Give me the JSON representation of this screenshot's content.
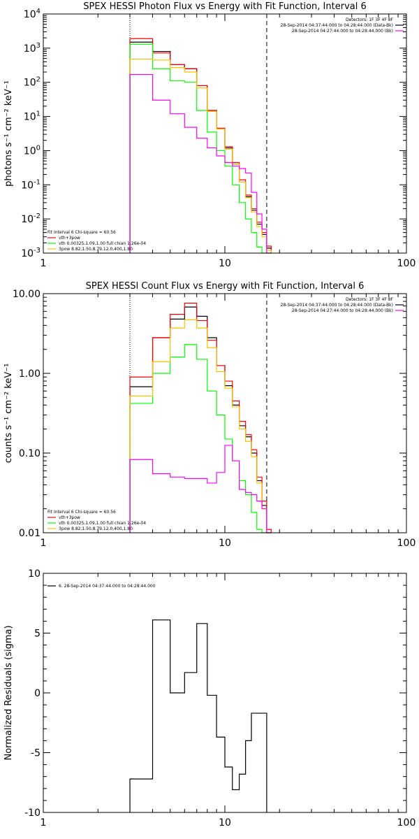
{
  "chart_data": [
    {
      "type": "line",
      "title": "SPEX HESSI Photon Flux vs Energy with Fit Function, Interval 6",
      "ylabel": "photons s⁻¹ cm⁻² keV⁻¹",
      "xscale": "log",
      "yscale": "log",
      "xlim": [
        1,
        100
      ],
      "ylim": [
        0.001,
        10000
      ],
      "xticks": [
        {
          "value": 1,
          "label": "1"
        },
        {
          "value": 10,
          "label": "10"
        },
        {
          "value": 100,
          "label": "100"
        }
      ],
      "yticks": [
        {
          "value": 0.001,
          "base": "10",
          "exp": "-3"
        },
        {
          "value": 0.01,
          "base": "10",
          "exp": "-2"
        },
        {
          "value": 0.1,
          "base": "10",
          "exp": "-1"
        },
        {
          "value": 1,
          "base": "10",
          "exp": "0"
        },
        {
          "value": 10,
          "base": "10",
          "exp": "1"
        },
        {
          "value": 100,
          "base": "10",
          "exp": "2"
        },
        {
          "value": 1000,
          "base": "10",
          "exp": "3"
        },
        {
          "value": 10000,
          "base": "10",
          "exp": "4"
        }
      ],
      "vlines": [
        {
          "x": 3.0,
          "style": "dotted"
        },
        {
          "x": 17.0,
          "style": "dashed"
        }
      ],
      "bin_edges": [
        3.0,
        4.0,
        5.0,
        6.0,
        7.0,
        8.0,
        9.0,
        10.0,
        11.0,
        12.0,
        13.0,
        14.0,
        15.0,
        16.0,
        17.0,
        18.0
      ],
      "series": [
        {
          "color": "#000000",
          "values": [
            1500,
            800,
            330,
            250,
            80,
            15,
            4.5,
            1.2,
            0.4,
            0.12,
            0.045,
            0.018,
            0.007,
            0.0035,
            0.0014
          ]
        },
        {
          "color": "#ff0000",
          "values": [
            1900,
            720,
            330,
            250,
            80,
            15,
            4.5,
            1.3,
            0.45,
            0.14,
            0.05,
            0.02,
            0.008,
            0.004,
            0.0016
          ]
        },
        {
          "color": "#00ff00",
          "values": [
            1300,
            250,
            110,
            100,
            15,
            3.5,
            1.0,
            0.35,
            0.1,
            0.03,
            0.01,
            0.004,
            0.0015,
            0.001,
            0.001
          ]
        },
        {
          "color": "#ffc000",
          "values": [
            480,
            450,
            270,
            200,
            68,
            14,
            4.3,
            1.1,
            0.4,
            0.12,
            0.042,
            0.016,
            0.006,
            0.003,
            0.0012
          ]
        },
        {
          "color": "#ff00ff",
          "values": [
            170,
            30,
            12,
            4.8,
            2.3,
            1.2,
            0.7,
            0.45,
            0.35,
            0.3,
            0.22,
            0.06,
            0.014,
            0.005,
            0.001
          ]
        }
      ],
      "legend_left": [
        {
          "text": "Fit Interval  6    Chi-square = 60.56",
          "color": "#000000",
          "line": false
        },
        {
          "text": "vth+3pow",
          "color": "#ff0000",
          "line": true
        },
        {
          "text": "vth 0.00325,1.09,1.00  full chian 1.26e-04",
          "color": "#00ff00",
          "line": true
        },
        {
          "text": "3pow 8.82,1.50,8.79,12.0,400,1.80",
          "color": "#ffc000",
          "line": true
        }
      ],
      "legend_right": [
        {
          "text": "Detectors: 1F 3F 4F 8F",
          "color": "#000000",
          "line": false
        },
        {
          "text": "28-Sep-2014 04:37:44.000 to 04:28:44.000 (Data-Bk)",
          "color": "#000000",
          "line": true
        },
        {
          "text": "28-Sep-2014 04:27:44.000 to 04:28:44.000 (Bk)",
          "color": "#ff00ff",
          "line": true
        }
      ]
    },
    {
      "type": "line",
      "title": "SPEX HESSI Count Flux vs Energy with Fit Function, Interval 6",
      "ylabel": "counts s⁻¹ cm⁻² keV⁻¹",
      "xscale": "log",
      "yscale": "log",
      "xlim": [
        1,
        100
      ],
      "ylim": [
        0.01,
        10
      ],
      "xticks": [
        {
          "value": 1,
          "label": "1"
        },
        {
          "value": 10,
          "label": "10"
        },
        {
          "value": 100,
          "label": "100"
        }
      ],
      "yticks": [
        {
          "value": 0.01,
          "label": "0.01"
        },
        {
          "value": 0.1,
          "label": "0.10"
        },
        {
          "value": 1,
          "label": "1.00"
        },
        {
          "value": 10,
          "label": "10.00"
        }
      ],
      "vlines": [
        {
          "x": 3.0,
          "style": "dotted"
        },
        {
          "x": 17.0,
          "style": "dashed"
        }
      ],
      "bin_edges": [
        3.0,
        4.0,
        5.0,
        6.0,
        7.0,
        8.0,
        9.0,
        10.0,
        11.0,
        12.0,
        13.0,
        14.0,
        15.0,
        16.0,
        17.0,
        18.0
      ],
      "series": [
        {
          "color": "#000000",
          "values": [
            0.68,
            2.8,
            4.8,
            6.8,
            5.2,
            2.8,
            1.25,
            0.7,
            0.4,
            0.22,
            0.16,
            0.1,
            0.045,
            0.022,
            0.01
          ]
        },
        {
          "color": "#ff0000",
          "values": [
            0.9,
            2.8,
            5.5,
            7.6,
            4.6,
            2.6,
            1.25,
            0.8,
            0.45,
            0.25,
            0.17,
            0.11,
            0.05,
            0.025,
            0.011
          ]
        },
        {
          "color": "#00ff00",
          "values": [
            0.42,
            1.0,
            1.6,
            2.3,
            1.5,
            0.6,
            0.3,
            0.15,
            0.08,
            0.045,
            0.03,
            0.018,
            0.011,
            0.01,
            0.01
          ]
        },
        {
          "color": "#ffc000",
          "values": [
            0.52,
            1.4,
            3.7,
            4.7,
            3.7,
            2.1,
            1.05,
            0.65,
            0.38,
            0.2,
            0.14,
            0.09,
            0.042,
            0.02,
            0.009
          ]
        },
        {
          "color": "#ff00ff",
          "values": [
            0.083,
            0.055,
            0.05,
            0.048,
            0.048,
            0.042,
            0.057,
            0.125,
            0.08,
            0.035,
            0.032,
            0.03,
            0.025,
            0.02,
            0.01
          ]
        }
      ],
      "legend_left": [
        {
          "text": "Fit Interval  6    Chi-square = 60.56",
          "color": "#000000",
          "line": false
        },
        {
          "text": "vth+3pow",
          "color": "#ff0000",
          "line": true
        },
        {
          "text": "vth 0.00325,1.09,1.00  full chian 1.26e-04",
          "color": "#00ff00",
          "line": true
        },
        {
          "text": "3pow 8.82,1.50,8.79,12.0,400,1.80",
          "color": "#ffc000",
          "line": true
        }
      ],
      "legend_right": [
        {
          "text": "Detectors: 1F 3F 4F 8F",
          "color": "#000000",
          "line": false
        },
        {
          "text": "28-Sep-2014 04:37:44.000 to 04:28:44.000 (Data-Bk)",
          "color": "#000000",
          "line": true
        },
        {
          "text": "28-Sep-2014 04:27:44.000 to 04:28:44.000 (Bk)",
          "color": "#ff00ff",
          "line": true
        }
      ]
    },
    {
      "type": "line",
      "title": "",
      "ylabel": "Normalized Residuals (sigma)",
      "xscale": "log",
      "yscale": "linear",
      "xlim": [
        1,
        100
      ],
      "ylim": [
        -10,
        10
      ],
      "xticks": [
        {
          "value": 1,
          "label": "1"
        },
        {
          "value": 10,
          "label": "10"
        },
        {
          "value": 100,
          "label": "100"
        }
      ],
      "yticks": [
        {
          "value": -10,
          "label": "-10"
        },
        {
          "value": -5,
          "label": "-5"
        },
        {
          "value": 0,
          "label": "0"
        },
        {
          "value": 5,
          "label": "5"
        },
        {
          "value": 10,
          "label": "10"
        }
      ],
      "bin_edges": [
        3.0,
        4.0,
        5.0,
        6.0,
        7.0,
        8.0,
        9.0,
        10.0,
        11.0,
        12.0,
        13.0,
        14.0,
        15.0,
        16.0,
        17.0
      ],
      "series": [
        {
          "color": "#000000",
          "values": [
            -7.2,
            6.1,
            0.0,
            1.7,
            5.8,
            -0.2,
            -3.7,
            -6.2,
            -8.1,
            -6.8,
            -4.0,
            -1.7,
            -1.7,
            -1.7
          ]
        }
      ],
      "legend_left": [
        {
          "text": "6. 28-Sep-2014 04:37:44.000 to 04:28:44.000",
          "color": "#000000",
          "line": true
        }
      ],
      "legend_right": []
    }
  ]
}
